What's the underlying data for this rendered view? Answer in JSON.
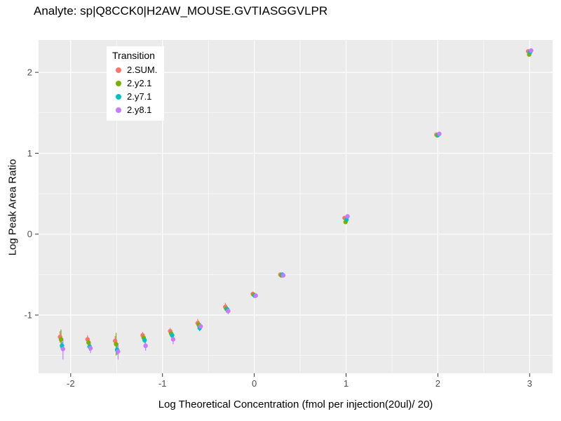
{
  "title": "Analyte: sp|Q8CCK0|H2AW_MOUSE.GVTIASGGVLPR",
  "chart_data": {
    "type": "scatter",
    "title": "Analyte: sp|Q8CCK0|H2AW_MOUSE.GVTIASGGVLPR",
    "xlabel": "Log Theoretical Concentration (fmol per injection(20ul)/ 20)",
    "ylabel": "Log Peak Area Ratio",
    "legend_title": "Transition",
    "legend_position": "inside-top-left",
    "grid": true,
    "panel_bg": "#EBEBEB",
    "grid_color": "#FFFFFF",
    "tick_color": "#333333",
    "tick_label_color": "#4D4D4D",
    "xlim": [
      -2.35,
      3.25
    ],
    "ylim": [
      -1.72,
      2.4
    ],
    "xticks": [
      -2,
      -1,
      0,
      1,
      2,
      3
    ],
    "yticks": [
      -1,
      0,
      1,
      2
    ],
    "series": [
      {
        "name": "2.SUM.",
        "color": "#F8766D",
        "points": [
          {
            "x": -2.1,
            "y": -1.27,
            "err": 0.07
          },
          {
            "x": -1.8,
            "y": -1.3,
            "err": 0.05
          },
          {
            "x": -1.5,
            "y": -1.32,
            "err": 0.06
          },
          {
            "x": -1.2,
            "y": -1.25,
            "err": 0.04
          },
          {
            "x": -0.9,
            "y": -1.2,
            "err": 0.04
          },
          {
            "x": -0.6,
            "y": -1.1,
            "err": 0.05
          },
          {
            "x": -0.3,
            "y": -0.9,
            "err": 0.05
          },
          {
            "x": 0.0,
            "y": -0.74,
            "err": 0.03
          },
          {
            "x": 0.3,
            "y": -0.5,
            "err": 0.02
          },
          {
            "x": 1.0,
            "y": 0.2,
            "err": 0.02
          },
          {
            "x": 2.0,
            "y": 1.23,
            "err": 0.01
          },
          {
            "x": 3.0,
            "y": 2.26,
            "err": 0.02
          }
        ]
      },
      {
        "name": "2.y2.1",
        "color": "#7CAE00",
        "points": [
          {
            "x": -2.1,
            "y": -1.3,
            "err": 0.12
          },
          {
            "x": -1.8,
            "y": -1.34,
            "err": 0.06
          },
          {
            "x": -1.5,
            "y": -1.36,
            "err": 0.14
          },
          {
            "x": -1.2,
            "y": -1.28,
            "err": 0.05
          },
          {
            "x": -0.9,
            "y": -1.23,
            "err": 0.05
          },
          {
            "x": -0.6,
            "y": -1.12,
            "err": 0.05
          },
          {
            "x": -0.3,
            "y": -0.92,
            "err": 0.05
          },
          {
            "x": 0.0,
            "y": -0.75,
            "err": 0.03
          },
          {
            "x": 0.3,
            "y": -0.51,
            "err": 0.02
          },
          {
            "x": 1.0,
            "y": 0.15,
            "err": 0.02
          },
          {
            "x": 2.0,
            "y": 1.22,
            "err": 0.01
          },
          {
            "x": 3.0,
            "y": 2.22,
            "err": 0.02
          }
        ]
      },
      {
        "name": "2.y7.1",
        "color": "#00BFC4",
        "points": [
          {
            "x": -2.1,
            "y": -1.38,
            "err": 0.05
          },
          {
            "x": -1.8,
            "y": -1.39,
            "err": 0.05
          },
          {
            "x": -1.5,
            "y": -1.43,
            "err": 0.06
          },
          {
            "x": -1.2,
            "y": -1.31,
            "err": 0.04
          },
          {
            "x": -0.9,
            "y": -1.25,
            "err": 0.04
          },
          {
            "x": -0.6,
            "y": -1.16,
            "err": 0.04
          },
          {
            "x": -0.3,
            "y": -0.93,
            "err": 0.04
          },
          {
            "x": 0.0,
            "y": -0.76,
            "err": 0.03
          },
          {
            "x": 0.3,
            "y": -0.5,
            "err": 0.02
          },
          {
            "x": 1.0,
            "y": 0.18,
            "err": 0.02
          },
          {
            "x": 2.0,
            "y": 1.23,
            "err": 0.01
          },
          {
            "x": 3.0,
            "y": 2.25,
            "err": 0.02
          }
        ]
      },
      {
        "name": "2.y8.1",
        "color": "#C77CFF",
        "points": [
          {
            "x": -2.1,
            "y": -1.42,
            "err": 0.13
          },
          {
            "x": -1.8,
            "y": -1.41,
            "err": 0.06
          },
          {
            "x": -1.5,
            "y": -1.45,
            "err": 0.1
          },
          {
            "x": -1.2,
            "y": -1.38,
            "err": 0.06
          },
          {
            "x": -0.9,
            "y": -1.3,
            "err": 0.06
          },
          {
            "x": -0.6,
            "y": -1.14,
            "err": 0.04
          },
          {
            "x": -0.3,
            "y": -0.95,
            "err": 0.04
          },
          {
            "x": 0.0,
            "y": -0.76,
            "err": 0.03
          },
          {
            "x": 0.3,
            "y": -0.51,
            "err": 0.02
          },
          {
            "x": 1.0,
            "y": 0.22,
            "err": 0.02
          },
          {
            "x": 2.0,
            "y": 1.24,
            "err": 0.01
          },
          {
            "x": 3.0,
            "y": 2.27,
            "err": 0.02
          }
        ]
      }
    ]
  }
}
